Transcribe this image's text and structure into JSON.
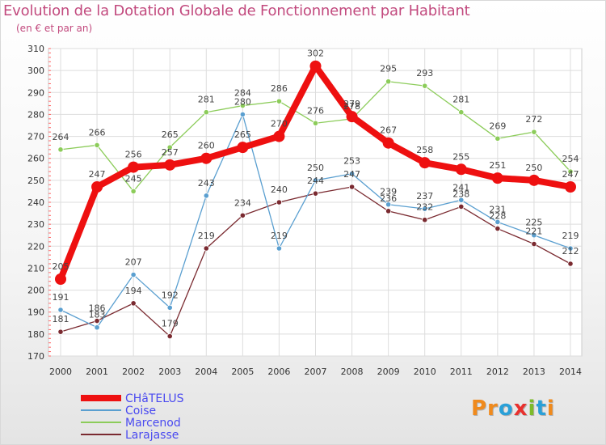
{
  "title": "Evolution de la Dotation Globale de Fonctionnement par Habitant",
  "subtitle": "(en € et par an)",
  "logo": {
    "parts": [
      "Pr",
      "o",
      "x",
      "i",
      "t",
      "i"
    ],
    "colors": [
      "#f08a1c",
      "#2aa0d8",
      "#e8312e",
      "#7dbb2a",
      "#2aa0d8",
      "#f08a1c"
    ]
  },
  "chart_data": {
    "type": "line",
    "x": [
      "2000",
      "2001",
      "2002",
      "2003",
      "2004",
      "2005",
      "2006",
      "2007",
      "2008",
      "2009",
      "2010",
      "2011",
      "2012",
      "2013",
      "2014"
    ],
    "ylim": [
      170,
      310
    ],
    "yticks": [
      170,
      180,
      190,
      200,
      210,
      220,
      230,
      240,
      250,
      260,
      270,
      280,
      290,
      300,
      310
    ],
    "grid": true,
    "legend_position": "bottom-left",
    "series": [
      {
        "name": "Larajasse",
        "color": "#7a2a30",
        "values": [
          181,
          186,
          194,
          179,
          219,
          234,
          240,
          244,
          247,
          236,
          232,
          238,
          228,
          221,
          212
        ]
      },
      {
        "name": "Marcenod",
        "color": "#8ccc5a",
        "values": [
          264,
          266,
          245,
          265,
          281,
          284,
          286,
          276,
          278,
          295,
          293,
          281,
          269,
          272,
          254
        ]
      },
      {
        "name": "Coise",
        "color": "#5a9fd0",
        "values": [
          191,
          183,
          207,
          192,
          243,
          280,
          219,
          250,
          253,
          239,
          237,
          241,
          231,
          225,
          219
        ]
      },
      {
        "name": "CHâTELUS",
        "color": "#ee1010",
        "values": [
          205,
          247,
          256,
          257,
          260,
          265,
          270,
          302,
          279,
          267,
          258,
          255,
          251,
          250,
          247
        ]
      }
    ],
    "legend": [
      {
        "name": "CHâTELUS",
        "color": "#ee1010",
        "text_color": "#4a4af0"
      },
      {
        "name": "Coise",
        "color": "#5a9fd0",
        "text_color": "#4a4af0"
      },
      {
        "name": "Marcenod",
        "color": "#8ccc5a",
        "text_color": "#4a4af0"
      },
      {
        "name": "Larajasse",
        "color": "#7a2a30",
        "text_color": "#4a4af0"
      }
    ]
  }
}
